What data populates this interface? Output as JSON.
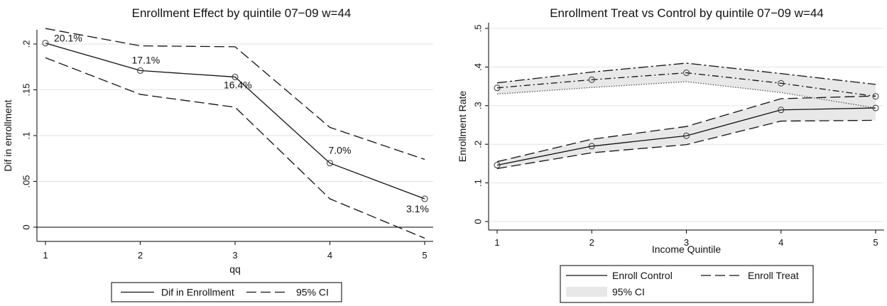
{
  "chart_data": [
    {
      "type": "line",
      "title": "Enrollment Effect by quintile 07−09 w=44",
      "xlabel": "qq",
      "ylabel": "Dif in enrollment",
      "xlim": [
        1,
        5
      ],
      "ylim": [
        -0.015,
        0.225
      ],
      "x": [
        1,
        2,
        3,
        4,
        5
      ],
      "xticks": [
        "1",
        "2",
        "3",
        "4",
        "5"
      ],
      "yticks": [
        0,
        0.05,
        0.1,
        0.15,
        0.2
      ],
      "ytick_labels": [
        "0",
        ".05",
        ".1",
        ".15",
        ".2"
      ],
      "grid": true,
      "series": [
        {
          "name": "Dif in Enrollment",
          "values": [
            0.201,
            0.171,
            0.164,
            0.07,
            0.031
          ],
          "style": "solid",
          "markers": true
        },
        {
          "name": "95% CI",
          "values": [
            0.217,
            0.198,
            0.197,
            0.109,
            0.074
          ],
          "style": "dashed"
        },
        {
          "name": "",
          "values": [
            0.185,
            0.145,
            0.131,
            0.031,
            -0.012
          ],
          "style": "dashed"
        }
      ],
      "data_labels": [
        "20.1%",
        "17.1%",
        "16.4%",
        "7.0%",
        "3.1%"
      ],
      "reference_line": 0,
      "legend": {
        "placement": "bottom",
        "entries": [
          "Dif in Enrollment",
          "95% CI"
        ]
      }
    },
    {
      "type": "line",
      "title": "Enrollment Treat vs Control by quintile 07−09 w=44",
      "xlabel": "Income Quintile",
      "ylabel": "Enrollment Rate",
      "xlim": [
        1,
        5
      ],
      "ylim": [
        -0.01,
        0.505
      ],
      "x": [
        1,
        2,
        3,
        4,
        5
      ],
      "xticks": [
        "1",
        "2",
        "3",
        "4",
        "5"
      ],
      "yticks": [
        0,
        0.1,
        0.2,
        0.3,
        0.4,
        0.5
      ],
      "ytick_labels": [
        "0",
        ".1",
        ".2",
        ".3",
        ".4",
        ".5"
      ],
      "grid": true,
      "series": [
        {
          "name": "Enroll Control",
          "values": [
            0.146,
            0.195,
            0.222,
            0.289,
            0.294
          ],
          "style": "solid",
          "markers": true
        },
        {
          "name": "",
          "values": [
            0.155,
            0.213,
            0.246,
            0.318,
            0.325
          ],
          "style": "dashed"
        },
        {
          "name": "",
          "values": [
            0.137,
            0.178,
            0.199,
            0.26,
            0.262
          ],
          "style": "dashed"
        },
        {
          "name": "Enroll Treat",
          "values": [
            0.346,
            0.367,
            0.385,
            0.358,
            0.324
          ],
          "style": "dashdot",
          "markers": true
        },
        {
          "name": "",
          "values": [
            0.359,
            0.387,
            0.41,
            0.383,
            0.355
          ],
          "style": "longdashdot"
        },
        {
          "name": "",
          "values": [
            0.33,
            0.347,
            0.362,
            0.334,
            0.294
          ],
          "style": "dotted"
        }
      ],
      "bands": [
        {
          "name": "95% CI",
          "lower": [
            0.137,
            0.178,
            0.199,
            0.26,
            0.262
          ],
          "upper": [
            0.155,
            0.213,
            0.246,
            0.318,
            0.325
          ],
          "color": "#e8e8e8"
        },
        {
          "name": "95% CI",
          "lower": [
            0.33,
            0.347,
            0.362,
            0.334,
            0.294
          ],
          "upper": [
            0.359,
            0.387,
            0.41,
            0.383,
            0.355
          ],
          "color": "#e8e8e8"
        }
      ],
      "legend": {
        "placement": "bottom",
        "entries": [
          "Enroll Control",
          "Enroll Treat",
          "95% CI"
        ]
      }
    }
  ]
}
